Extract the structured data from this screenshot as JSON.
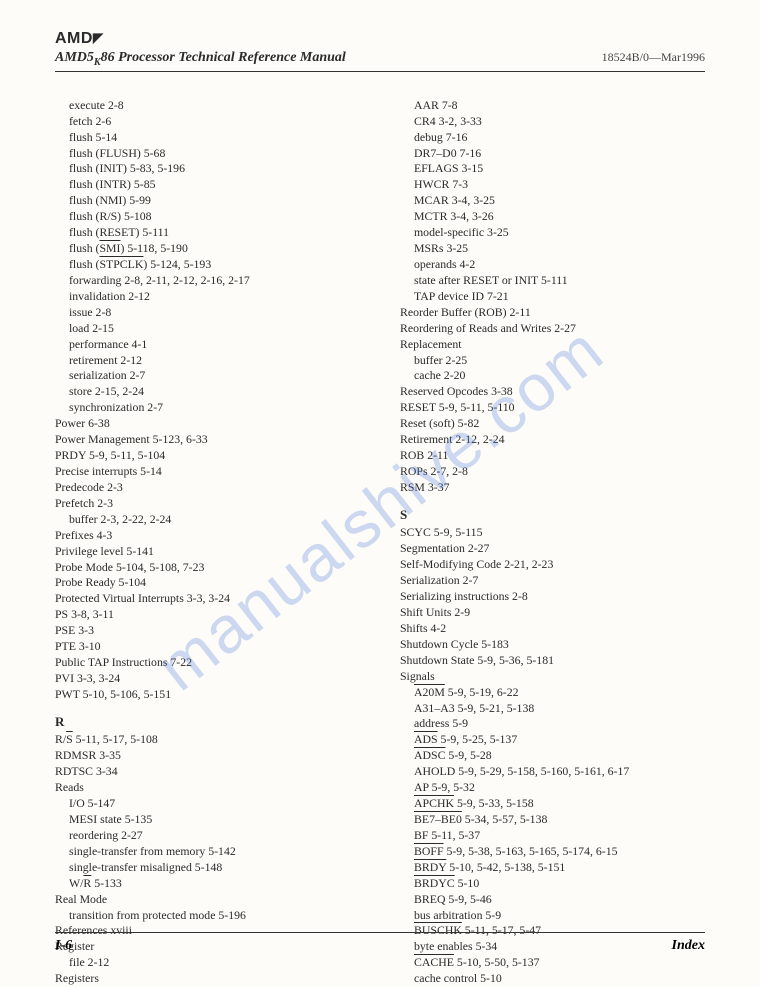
{
  "logo_text": "AMD",
  "header": {
    "manual_title_pre": "AMD5",
    "manual_title_sub": "K",
    "manual_title_post": "86 Processor Technical Reference Manual",
    "docnum": "18524B/0—Mar1996"
  },
  "watermark": "manualshive.com",
  "left_col": [
    {
      "t": "execute  2-8",
      "i": 1
    },
    {
      "t": "fetch  2-6",
      "i": 1
    },
    {
      "t": "flush  5-14",
      "i": 1
    },
    {
      "t": "flush (FLUSH)  5-68",
      "i": 1
    },
    {
      "t": "flush (INIT)  5-83, 5-196",
      "i": 1
    },
    {
      "t": "flush (INTR)  5-85",
      "i": 1
    },
    {
      "t": "flush (NMI)  5-99",
      "i": 1
    },
    {
      "t": "flush (R/S)  5-108",
      "i": 1
    },
    {
      "t": "flush (RESET)  5-111",
      "i": 1
    },
    {
      "t": "flush (SMI)  5-118, 5-190",
      "i": 1,
      "over": "SMI"
    },
    {
      "t": "flush (STPCLK)  5-124, 5-193",
      "i": 1,
      "over": "STPCLK"
    },
    {
      "t": "forwarding  2-8, 2-11, 2-12, 2-16, 2-17",
      "i": 1
    },
    {
      "t": "invalidation  2-12",
      "i": 1
    },
    {
      "t": "issue  2-8",
      "i": 1
    },
    {
      "t": "load  2-15",
      "i": 1
    },
    {
      "t": "performance  4-1",
      "i": 1
    },
    {
      "t": "retirement  2-12",
      "i": 1
    },
    {
      "t": "serialization  2-7",
      "i": 1
    },
    {
      "t": "store  2-15, 2-24",
      "i": 1
    },
    {
      "t": "synchronization  2-7",
      "i": 1
    },
    {
      "t": "Power  6-38",
      "i": 0
    },
    {
      "t": "Power Management  5-123, 6-33",
      "i": 0
    },
    {
      "t": "PRDY  5-9, 5-11, 5-104",
      "i": 0
    },
    {
      "t": "Precise interrupts  5-14",
      "i": 0
    },
    {
      "t": "Predecode  2-3",
      "i": 0
    },
    {
      "t": "Prefetch  2-3",
      "i": 0
    },
    {
      "t": "buffer  2-3, 2-22, 2-24",
      "i": 1
    },
    {
      "t": "Prefixes  4-3",
      "i": 0
    },
    {
      "t": "Privilege level  5-141",
      "i": 0
    },
    {
      "t": "Probe Mode  5-104, 5-108, 7-23",
      "i": 0
    },
    {
      "t": "Probe Ready  5-104",
      "i": 0
    },
    {
      "t": "Protected Virtual Interrupts  3-3, 3-24",
      "i": 0
    },
    {
      "t": "PS  3-8, 3-11",
      "i": 0
    },
    {
      "t": "PSE  3-3",
      "i": 0
    },
    {
      "t": "PTE  3-10",
      "i": 0
    },
    {
      "t": "Public TAP Instructions  7-22",
      "i": 0
    },
    {
      "t": "PVI  3-3, 3-24",
      "i": 0
    },
    {
      "t": "PWT  5-10, 5-106, 5-151",
      "i": 0
    },
    {
      "section": "R"
    },
    {
      "t": "R/S  5-11, 5-17, 5-108",
      "i": 0,
      "over": "S"
    },
    {
      "t": "RDMSR  3-35",
      "i": 0
    },
    {
      "t": "RDTSC  3-34",
      "i": 0
    },
    {
      "t": "Reads",
      "i": 0
    },
    {
      "t": "I/O  5-147",
      "i": 1
    },
    {
      "t": "MESI state  5-135",
      "i": 1
    },
    {
      "t": "reordering  2-27",
      "i": 1
    },
    {
      "t": "single-transfer from memory  5-142",
      "i": 1
    },
    {
      "t": "single-transfer misaligned  5-148",
      "i": 1
    },
    {
      "t": "W/R  5-133",
      "i": 1,
      "over": "R"
    },
    {
      "t": "Real Mode",
      "i": 0
    },
    {
      "t": "transition from protected mode  5-196",
      "i": 1
    },
    {
      "t": "References  xviii",
      "i": 0
    },
    {
      "t": "Register",
      "i": 0
    },
    {
      "t": "file  2-12",
      "i": 1
    },
    {
      "t": "Registers",
      "i": 0
    }
  ],
  "right_col": [
    {
      "t": "AAR  7-8",
      "i": 1
    },
    {
      "t": "CR4  3-2, 3-33",
      "i": 1
    },
    {
      "t": "debug  7-16",
      "i": 1
    },
    {
      "t": "DR7–D0  7-16",
      "i": 1
    },
    {
      "t": "EFLAGS  3-15",
      "i": 1
    },
    {
      "t": "HWCR  7-3",
      "i": 1
    },
    {
      "t": "MCAR  3-4, 3-25",
      "i": 1
    },
    {
      "t": "MCTR  3-4, 3-26",
      "i": 1
    },
    {
      "t": "model-specific  3-25",
      "i": 1
    },
    {
      "t": "MSRs  3-25",
      "i": 1
    },
    {
      "t": "operands  4-2",
      "i": 1
    },
    {
      "t": "state after RESET or INIT  5-111",
      "i": 1
    },
    {
      "t": "TAP device ID  7-21",
      "i": 1
    },
    {
      "t": "Reorder Buffer (ROB)  2-11",
      "i": 0
    },
    {
      "t": "Reordering of Reads and Writes  2-27",
      "i": 0
    },
    {
      "t": "Replacement",
      "i": 0
    },
    {
      "t": "buffer  2-25",
      "i": 1
    },
    {
      "t": "cache  2-20",
      "i": 1
    },
    {
      "t": "Reserved Opcodes  3-38",
      "i": 0
    },
    {
      "t": "RESET  5-9, 5-11, 5-110",
      "i": 0
    },
    {
      "t": "Reset (soft)  5-82",
      "i": 0
    },
    {
      "t": "Retirement  2-12, 2-24",
      "i": 0
    },
    {
      "t": "ROB  2-11",
      "i": 0
    },
    {
      "t": "ROPs  2-7, 2-8",
      "i": 0
    },
    {
      "t": "RSM  3-37",
      "i": 0
    },
    {
      "section": "S"
    },
    {
      "t": "SCYC  5-9, 5-115",
      "i": 0
    },
    {
      "t": "Segmentation  2-27",
      "i": 0
    },
    {
      "t": "Self-Modifying Code  2-21, 2-23",
      "i": 0
    },
    {
      "t": "Serialization  2-7",
      "i": 0
    },
    {
      "t": "Serializing instructions  2-8",
      "i": 0
    },
    {
      "t": "Shift Units  2-9",
      "i": 0
    },
    {
      "t": "Shifts  4-2",
      "i": 0
    },
    {
      "t": "Shutdown Cycle  5-183",
      "i": 0
    },
    {
      "t": "Shutdown State  5-9, 5-36, 5-181",
      "i": 0
    },
    {
      "t": "Signals",
      "i": 0
    },
    {
      "t": "A20M  5-9, 5-19, 6-22",
      "i": 1,
      "over": "A20M"
    },
    {
      "t": "A31–A3  5-9, 5-21, 5-138",
      "i": 1
    },
    {
      "t": "address  5-9",
      "i": 1
    },
    {
      "t": "ADS  5-9, 5-25, 5-137",
      "i": 1,
      "over": "ADS"
    },
    {
      "t": "ADSC  5-9, 5-28",
      "i": 1,
      "over": "ADSC"
    },
    {
      "t": "AHOLD  5-9, 5-29, 5-158, 5-160, 5-161, 6-17",
      "i": 1
    },
    {
      "t": "AP  5-9, 5-32",
      "i": 1
    },
    {
      "t": "APCHK  5-9, 5-33, 5-158",
      "i": 1,
      "over": "APCHK"
    },
    {
      "t": "BE7–BE0  5-34, 5-57, 5-138",
      "i": 1,
      "over": "BE7–BE0"
    },
    {
      "t": "BF  5-11, 5-37",
      "i": 1
    },
    {
      "t": "BOFF  5-9, 5-38, 5-163, 5-165, 5-174, 6-15",
      "i": 1,
      "over": "BOFF"
    },
    {
      "t": "BRDY  5-10, 5-42, 5-138, 5-151",
      "i": 1,
      "over": "BRDY"
    },
    {
      "t": "BRDYC  5-10",
      "i": 1,
      "over": "BRDYC"
    },
    {
      "t": "BREQ  5-9, 5-46",
      "i": 1
    },
    {
      "t": "bus arbitration  5-9",
      "i": 1
    },
    {
      "t": "BUSCHK  5-11, 5-17, 5-47",
      "i": 1,
      "over": "BUSCHK"
    },
    {
      "t": "byte enables  5-34",
      "i": 1
    },
    {
      "t": "CACHE  5-10, 5-50, 5-137",
      "i": 1,
      "over": "CACHE"
    },
    {
      "t": "cache control  5-10",
      "i": 1
    }
  ],
  "footer": {
    "page": "I-6",
    "section": "Index"
  }
}
